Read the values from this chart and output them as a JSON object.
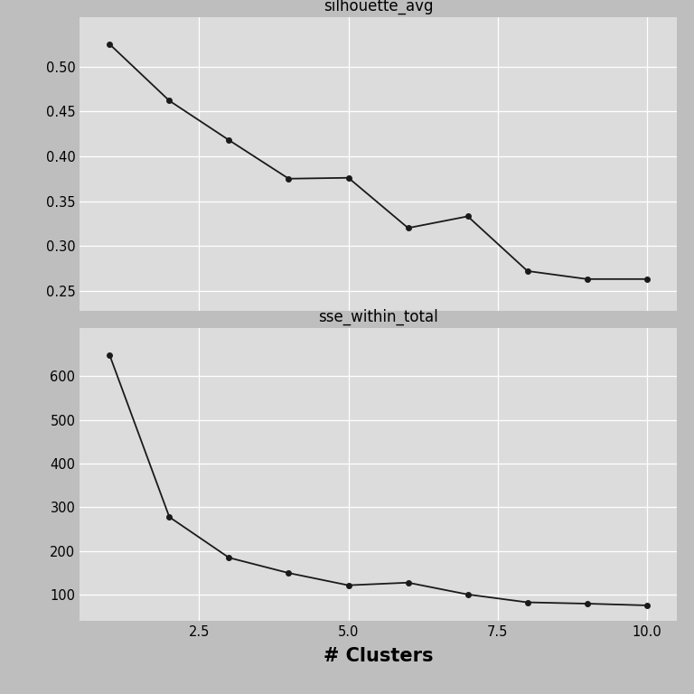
{
  "x": [
    1,
    2,
    3,
    4,
    5,
    6,
    7,
    8,
    9,
    10
  ],
  "silhouette_avg": [
    0.525,
    0.462,
    0.418,
    0.375,
    0.376,
    0.32,
    0.333,
    0.272,
    0.263,
    0.263
  ],
  "sse_within_total": [
    648,
    278,
    185,
    150,
    122,
    128,
    101,
    83,
    80,
    76
  ],
  "panel1_title": "silhouette_avg",
  "panel2_title": "sse_within_total",
  "xlabel": "# Clusters",
  "background_color": "#BEBEBE",
  "strip_bg": "#C8C8C8",
  "plot_bg": "#DCDCDC",
  "line_color": "#1a1a1a",
  "marker": "o",
  "marker_size": 4,
  "line_width": 1.3,
  "ylim1": [
    0.228,
    0.555
  ],
  "ylim2": [
    40,
    710
  ],
  "yticks1": [
    0.25,
    0.3,
    0.35,
    0.4,
    0.45,
    0.5
  ],
  "yticks2": [
    100,
    200,
    300,
    400,
    500,
    600
  ],
  "xticks": [
    2.5,
    5.0,
    7.5,
    10.0
  ],
  "title_fontsize": 12,
  "label_fontsize": 15,
  "tick_fontsize": 10.5
}
